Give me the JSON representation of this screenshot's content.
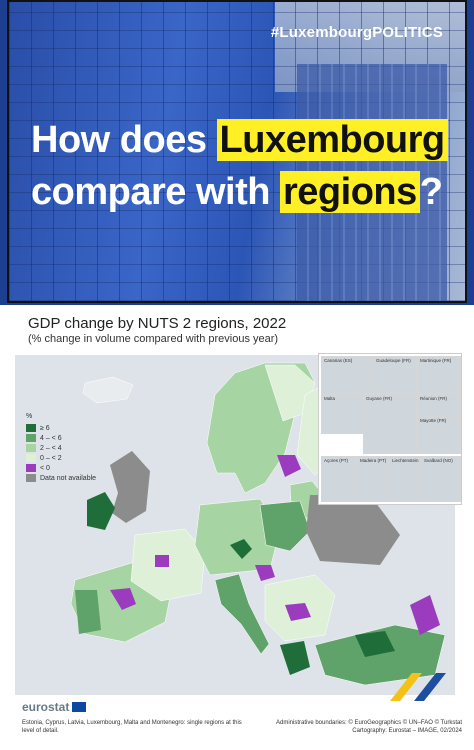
{
  "banner": {
    "hashtag": "#LuxembourgPOLITICS",
    "line1_pre": "How does ",
    "line1_hl": "Luxembourg",
    "line2_pre": "compare with ",
    "line2_hl": "regions",
    "line2_post": "?"
  },
  "map": {
    "title": "GDP change by NUTS 2 regions, 2022",
    "subtitle": "(% change in volume compared with previous year)",
    "legend": {
      "unit": "%",
      "items": [
        {
          "label": "≥ 6",
          "color": "#1f6e3a"
        },
        {
          "label": "4 – < 6",
          "color": "#5fa36b"
        },
        {
          "label": "2 – < 4",
          "color": "#a7d4a3"
        },
        {
          "label": "0 – < 2",
          "color": "#dff0d8"
        },
        {
          "label": "< 0",
          "color": "#9b3cbf"
        },
        {
          "label": "Data not available",
          "color": "#8c8c8c"
        }
      ]
    },
    "insets": [
      {
        "label": "Canarias (ES)"
      },
      {
        "label": "Guadeloupe (FR)"
      },
      {
        "label": "Martinique (FR)"
      },
      {
        "label": "Réunion (FR)"
      },
      {
        "label": "Malta"
      },
      {
        "label": "Guyane (FR)"
      },
      {
        "label": "Mayotte (FR)"
      },
      {
        "label": "Açores (PT)"
      },
      {
        "label": "Madeira (PT)"
      },
      {
        "label": "Liechtenstein"
      },
      {
        "label": "Svalbard (NO)"
      }
    ],
    "logo_text": "eurostat",
    "footnote_left": "Estonia, Cyprus, Latvia, Luxembourg, Malta and Montenegro: single regions at this level of detail.",
    "footnote_right": "Administrative boundaries: © EuroGeographics © UN–FAO © Turkstat Cartography: Eurostat – IMAGE, 02/2024"
  }
}
